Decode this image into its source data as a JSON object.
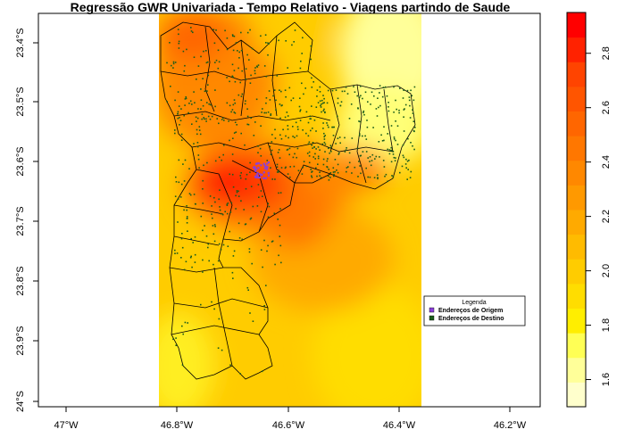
{
  "title": "Regressão GWR Univariada - Tempo Relativo - Viagens partindo de Saude",
  "x_ticks": [
    "47°W",
    "46.8°W",
    "46.6°W",
    "46.4°W",
    "46.2°W"
  ],
  "y_ticks": [
    "23.4°S",
    "23.5°S",
    "23.6°S",
    "23.7°S",
    "23.8°S",
    "23.9°S",
    "24°S"
  ],
  "legend": {
    "title": "Legenda",
    "items": [
      {
        "label": "Endereços de Origem",
        "color": "#8b3fd9"
      },
      {
        "label": "Endereços de Destino",
        "color": "#1a5c1a"
      }
    ]
  },
  "colorbar": {
    "ticks": [
      "1.6",
      "1.8",
      "2.0",
      "2.2",
      "2.4",
      "2.6",
      "2.8"
    ],
    "min": 1.5,
    "max": 2.95,
    "colors": [
      "#ffffcc",
      "#ffff99",
      "#ffff55",
      "#ffee00",
      "#ffdd00",
      "#ffcc00",
      "#ffbb00",
      "#ffaa00",
      "#ff9900",
      "#ff8800",
      "#ff7700",
      "#ff6600",
      "#ff5500",
      "#ff4400",
      "#ff2200",
      "#ff0000"
    ]
  },
  "colors": {
    "origin": "#8b3fd9",
    "destination": "#1a5c1a",
    "border": "#000000"
  }
}
